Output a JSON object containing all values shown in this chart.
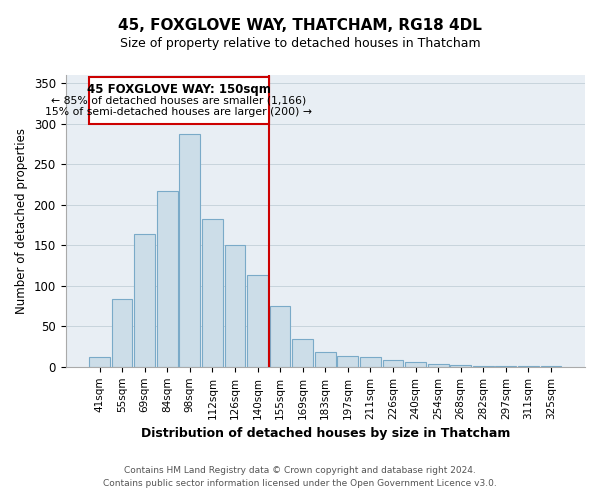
{
  "title": "45, FOXGLOVE WAY, THATCHAM, RG18 4DL",
  "subtitle": "Size of property relative to detached houses in Thatcham",
  "xlabel": "Distribution of detached houses by size in Thatcham",
  "ylabel": "Number of detached properties",
  "bin_labels": [
    "41sqm",
    "55sqm",
    "69sqm",
    "84sqm",
    "98sqm",
    "112sqm",
    "126sqm",
    "140sqm",
    "155sqm",
    "169sqm",
    "183sqm",
    "197sqm",
    "211sqm",
    "226sqm",
    "240sqm",
    "254sqm",
    "268sqm",
    "282sqm",
    "297sqm",
    "311sqm",
    "325sqm"
  ],
  "bar_heights": [
    12,
    84,
    164,
    217,
    287,
    182,
    150,
    113,
    75,
    34,
    18,
    13,
    12,
    9,
    6,
    4,
    2,
    1,
    1,
    1,
    1
  ],
  "bar_color": "#ccdde8",
  "bar_edge_color": "#7aaac8",
  "vline_x": 7.5,
  "vline_color": "#cc0000",
  "ylim": [
    0,
    360
  ],
  "yticks": [
    0,
    50,
    100,
    150,
    200,
    250,
    300,
    350
  ],
  "annotation_title": "45 FOXGLOVE WAY: 150sqm",
  "annotation_line1": "← 85% of detached houses are smaller (1,166)",
  "annotation_line2": "15% of semi-detached houses are larger (200) →",
  "annotation_box_facecolor": "#ffffff",
  "annotation_box_edgecolor": "#cc0000",
  "footer_line1": "Contains HM Land Registry data © Crown copyright and database right 2024.",
  "footer_line2": "Contains public sector information licensed under the Open Government Licence v3.0.",
  "plot_bg_color": "#e8eef4",
  "fig_bg_color": "#ffffff",
  "grid_color": "#c8d4dc",
  "title_fontsize": 11,
  "subtitle_fontsize": 9,
  "ylabel_fontsize": 8.5,
  "xlabel_fontsize": 9,
  "tick_fontsize": 7.5,
  "footer_fontsize": 6.5
}
